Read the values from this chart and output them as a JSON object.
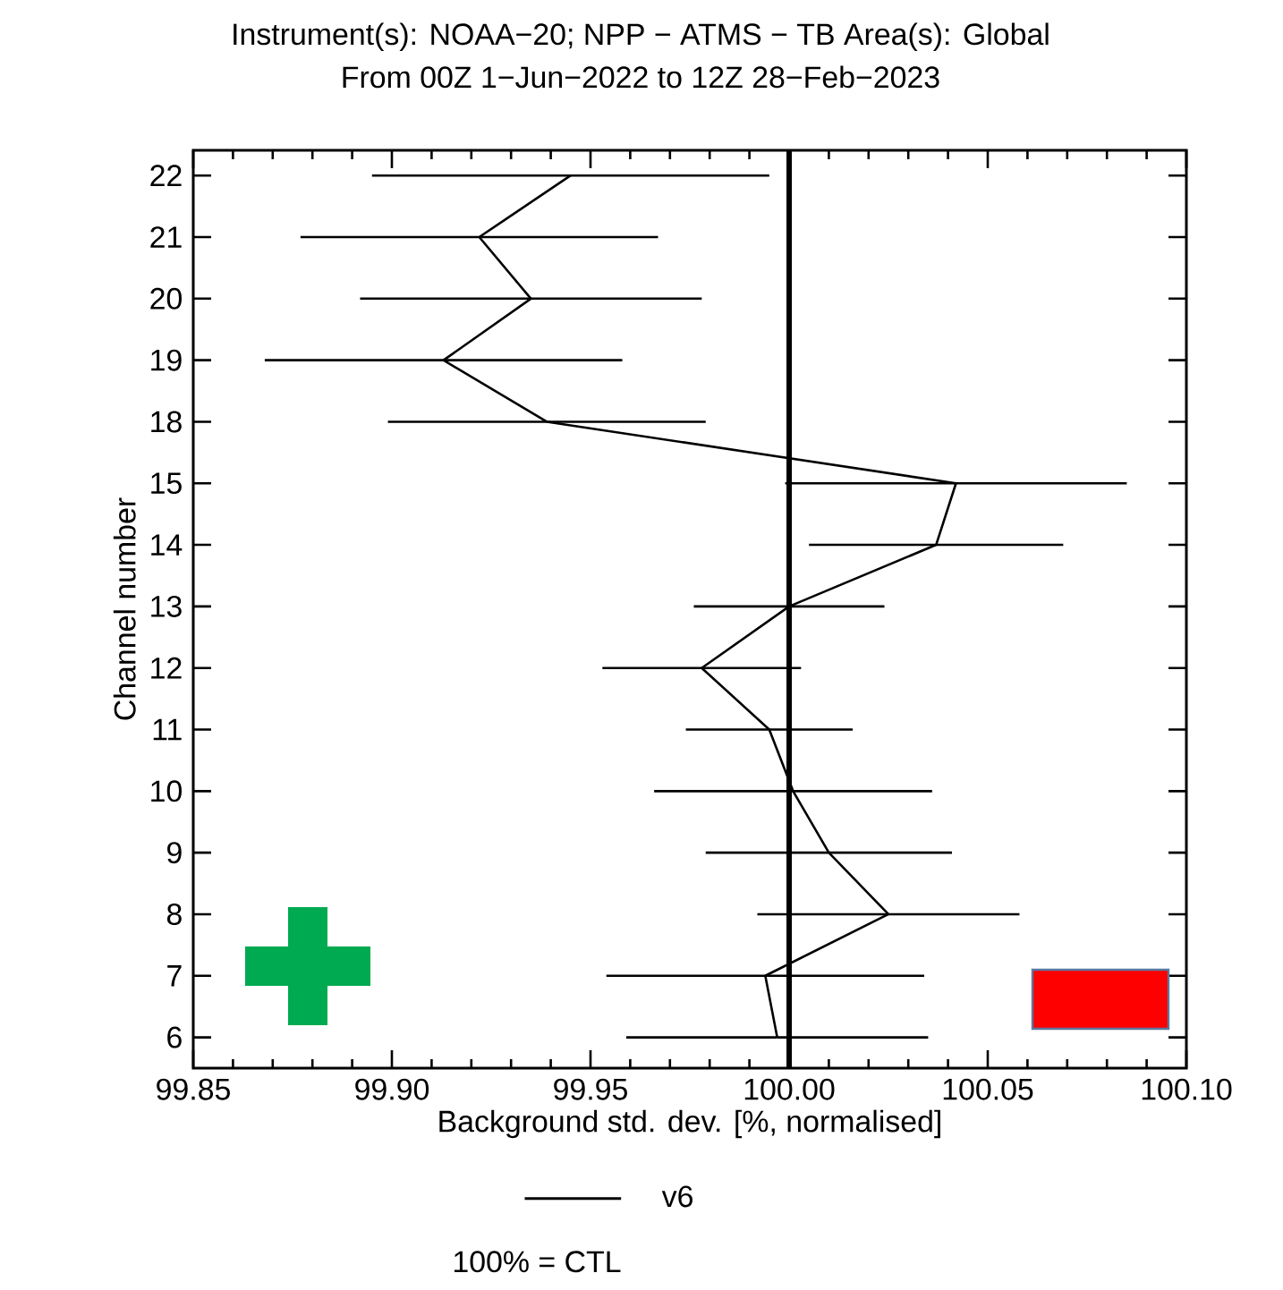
{
  "chart_data": {
    "type": "line",
    "orientation": "horizontal",
    "title": "Instrument(s): NOAA−20; NPP − ATMS − TB      Area(s): Global",
    "subtitle": "From 00Z  1−Jun−2022 to 12Z 28−Feb−2023",
    "xlabel": "Background std. dev. [%, normalised]",
    "ylabel": "Channel number",
    "categories": [
      "22",
      "21",
      "20",
      "19",
      "18",
      "15",
      "14",
      "13",
      "12",
      "11",
      "10",
      "9",
      "8",
      "7",
      "6"
    ],
    "series": [
      {
        "name": "v6",
        "color": "#000000",
        "values": [
          99.945,
          99.922,
          99.935,
          99.913,
          99.939,
          100.042,
          100.037,
          100.0,
          99.978,
          99.995,
          100.001,
          100.01,
          100.025,
          99.994,
          99.997
        ],
        "errors": [
          0.05,
          0.045,
          0.043,
          0.045,
          0.04,
          0.043,
          0.032,
          0.024,
          0.025,
          0.021,
          0.035,
          0.031,
          0.033,
          0.04,
          0.038
        ]
      }
    ],
    "xlim": [
      99.85,
      100.1
    ],
    "xticks": [
      {
        "value": 99.85,
        "label": "99.85"
      },
      {
        "value": 99.9,
        "label": "99.90"
      },
      {
        "value": 99.95,
        "label": "99.95"
      },
      {
        "value": 100.0,
        "label": "100.00"
      },
      {
        "value": 100.05,
        "label": "100.05"
      },
      {
        "value": 100.1,
        "label": "100.10"
      }
    ],
    "ref_lines": [
      {
        "axis": "x",
        "value": 100.0,
        "color": "#000000"
      }
    ],
    "annotations": [
      "100% = CTL"
    ],
    "legend": "bottom",
    "marker": "none",
    "line_style": "solid",
    "grid": false
  }
}
